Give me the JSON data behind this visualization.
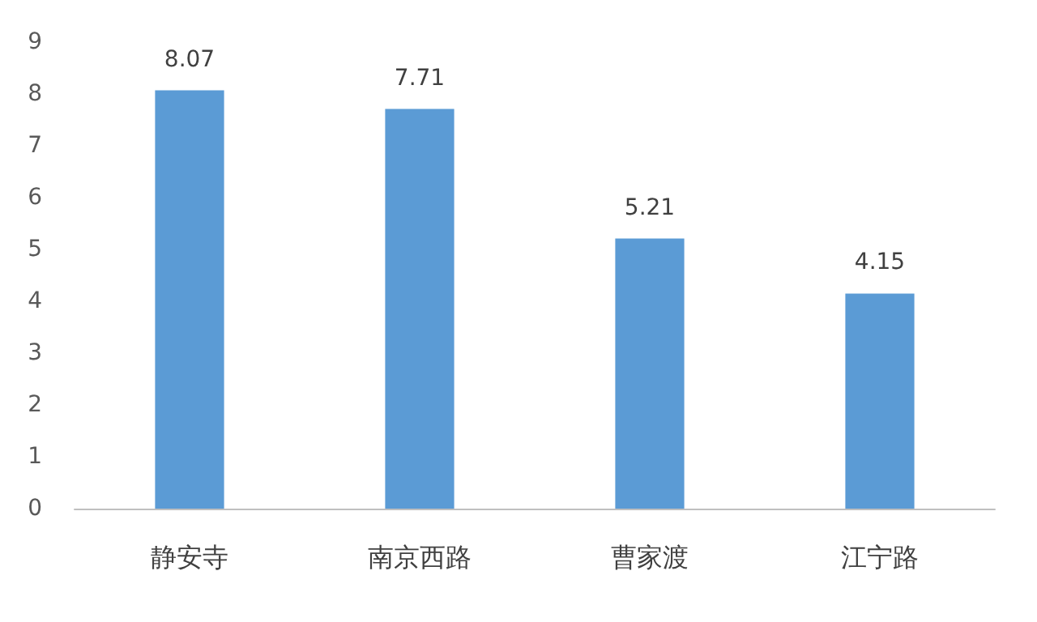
{
  "chart_data": {
    "type": "bar",
    "categories": [
      "静安寺",
      "南京西路",
      "曹家渡",
      "江宁路"
    ],
    "values": [
      8.07,
      7.71,
      5.21,
      4.15
    ],
    "color": "#5b9bd5",
    "ylim": [
      0,
      9
    ],
    "yticks": [
      0,
      1,
      2,
      3,
      4,
      5,
      6,
      7,
      8,
      9
    ],
    "grid": false,
    "data_labels": true
  }
}
